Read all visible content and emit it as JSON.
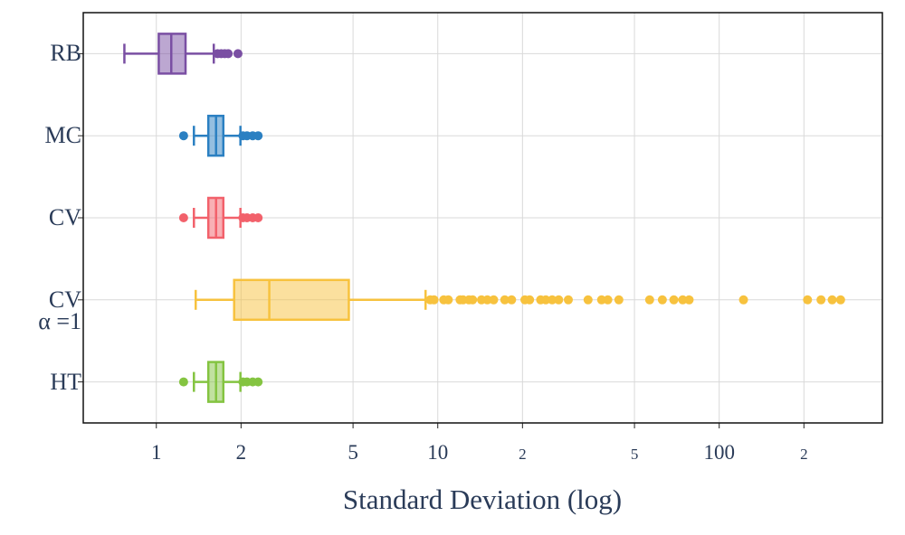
{
  "chart_data": {
    "type": "boxplot",
    "orientation": "horizontal",
    "xlabel": "Standard Deviation (log)",
    "categories": [
      "RB",
      "MC",
      "CV",
      "CV\nα =1",
      "HT"
    ],
    "xscale": "log",
    "grid": true,
    "xlim": [
      0.55,
      380
    ],
    "xticks": [
      1,
      2,
      5,
      10,
      {
        "value": 20,
        "label": "2"
      },
      {
        "value": 50,
        "label": "5"
      },
      100,
      {
        "value": 200,
        "label": "2"
      }
    ],
    "boxes": [
      {
        "color": "#7a4fa3",
        "whisker_low": 0.77,
        "q1": 1.02,
        "median": 1.13,
        "q3": 1.27,
        "whisker_high": 1.6,
        "outliers": [
          1.65,
          1.7,
          1.75,
          1.8,
          1.95
        ]
      },
      {
        "color": "#2b80c2",
        "whisker_low": 1.36,
        "q1": 1.53,
        "median": 1.63,
        "q3": 1.73,
        "whisker_high": 1.99,
        "outliers": [
          1.25,
          2.03,
          2.1,
          2.2,
          2.3
        ]
      },
      {
        "color": "#f2616b",
        "whisker_low": 1.36,
        "q1": 1.53,
        "median": 1.63,
        "q3": 1.73,
        "whisker_high": 1.99,
        "outliers": [
          1.25,
          2.03,
          2.1,
          2.2,
          2.3
        ]
      },
      {
        "color": "#f7c23e",
        "whisker_low": 1.38,
        "q1": 1.89,
        "median": 2.52,
        "q3": 4.83,
        "whisker_high": 9.05,
        "outliers": [
          9.4,
          9.7,
          10.5,
          10.9,
          12,
          12.3,
          12.9,
          13.3,
          14.3,
          15,
          15.8,
          17.3,
          18.3,
          20.4,
          21.2,
          23.2,
          24.2,
          25.5,
          26.9,
          29.1,
          34.2,
          38.2,
          40.2,
          44,
          56.6,
          62.8,
          69,
          74.2,
          78.2,
          122,
          206,
          230,
          252,
          270
        ]
      },
      {
        "color": "#84c441",
        "whisker_low": 1.36,
        "q1": 1.53,
        "median": 1.63,
        "q3": 1.73,
        "whisker_high": 1.99,
        "outliers": [
          1.25,
          2.03,
          2.1,
          2.2,
          2.3
        ]
      }
    ]
  }
}
